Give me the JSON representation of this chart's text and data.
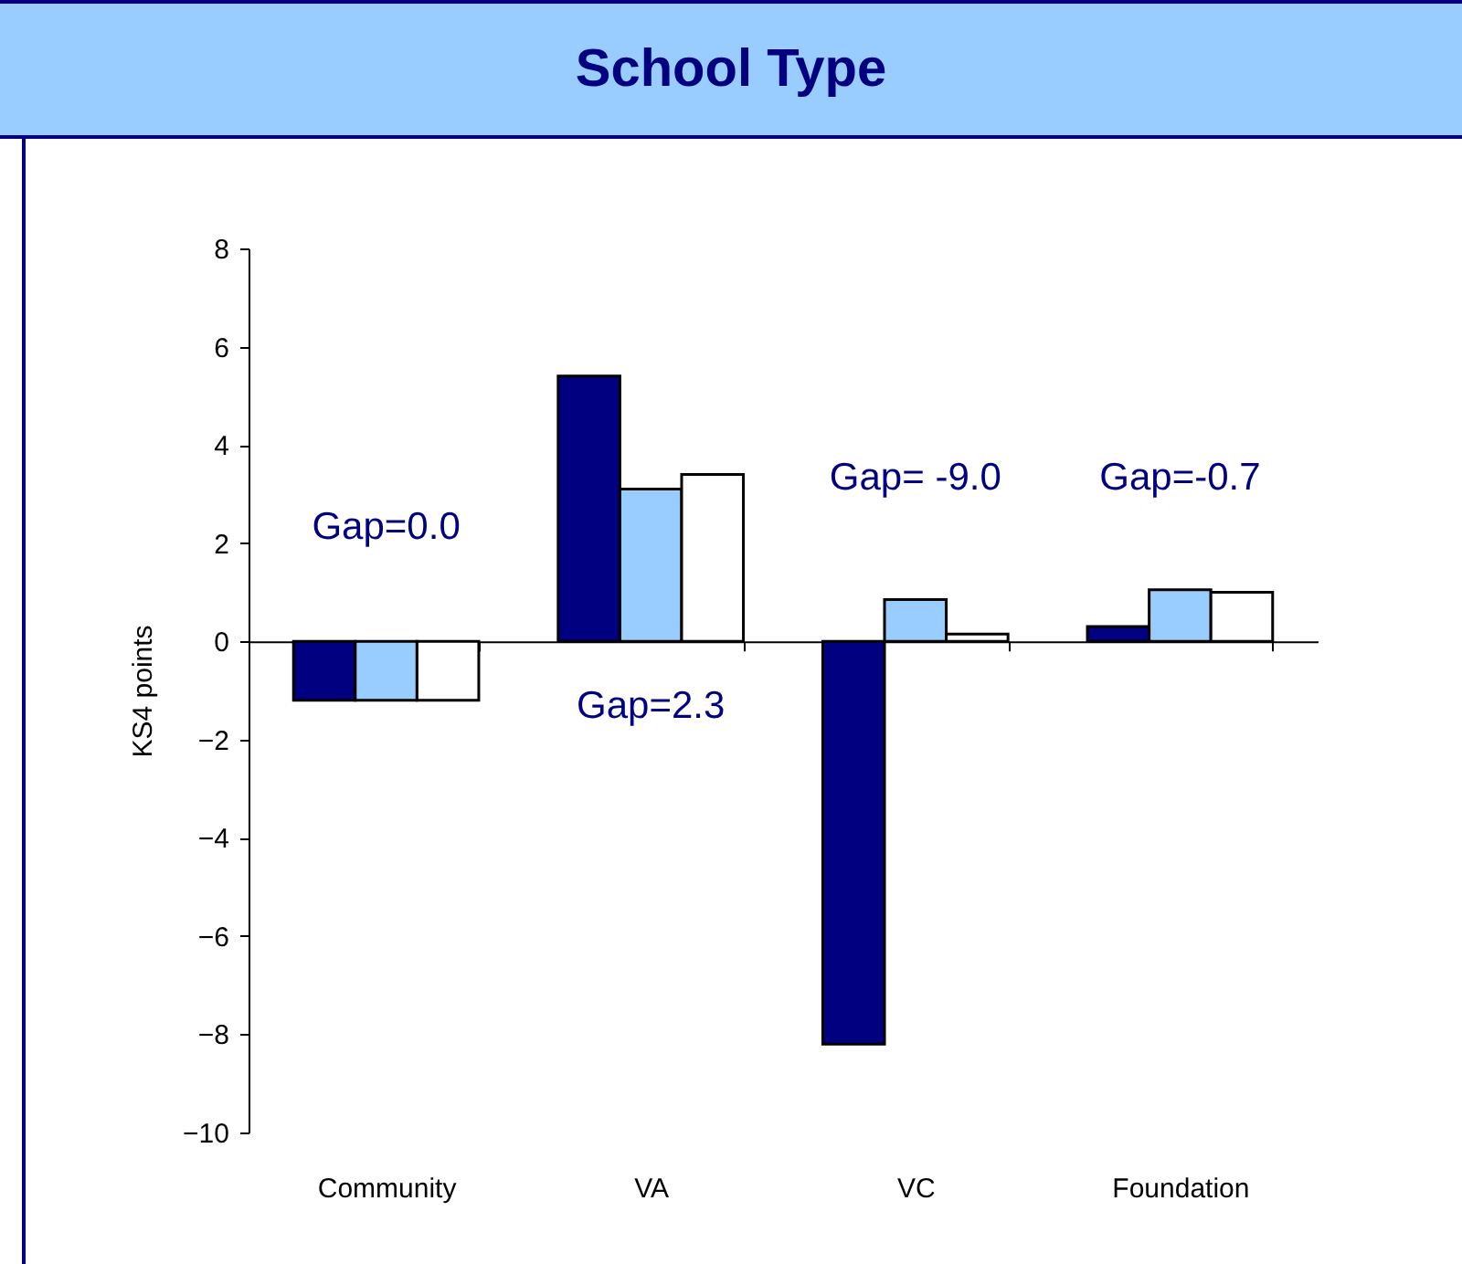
{
  "chart_data": {
    "type": "bar",
    "title": "School Type",
    "ylabel": "KS4 points",
    "categories": [
      "Community",
      "VA",
      "VC",
      "Foundation"
    ],
    "series": [
      {
        "color": "#000080",
        "values": [
          -1.2,
          5.4,
          -8.2,
          0.3
        ]
      },
      {
        "color": "#99ccff",
        "values": [
          -1.2,
          3.1,
          0.85,
          1.05
        ]
      },
      {
        "color": "#ffffff",
        "values": [
          -1.2,
          3.4,
          0.15,
          1.0
        ]
      }
    ],
    "ylim": [
      -10,
      8
    ],
    "yticks": [
      -10,
      -8,
      -6,
      -4,
      -2,
      0,
      2,
      4,
      6,
      8
    ],
    "legend": false,
    "annotations": [
      "Gap=0.0",
      "Gap=2.3",
      "Gap= -9.0",
      "Gap=-0.7"
    ]
  }
}
